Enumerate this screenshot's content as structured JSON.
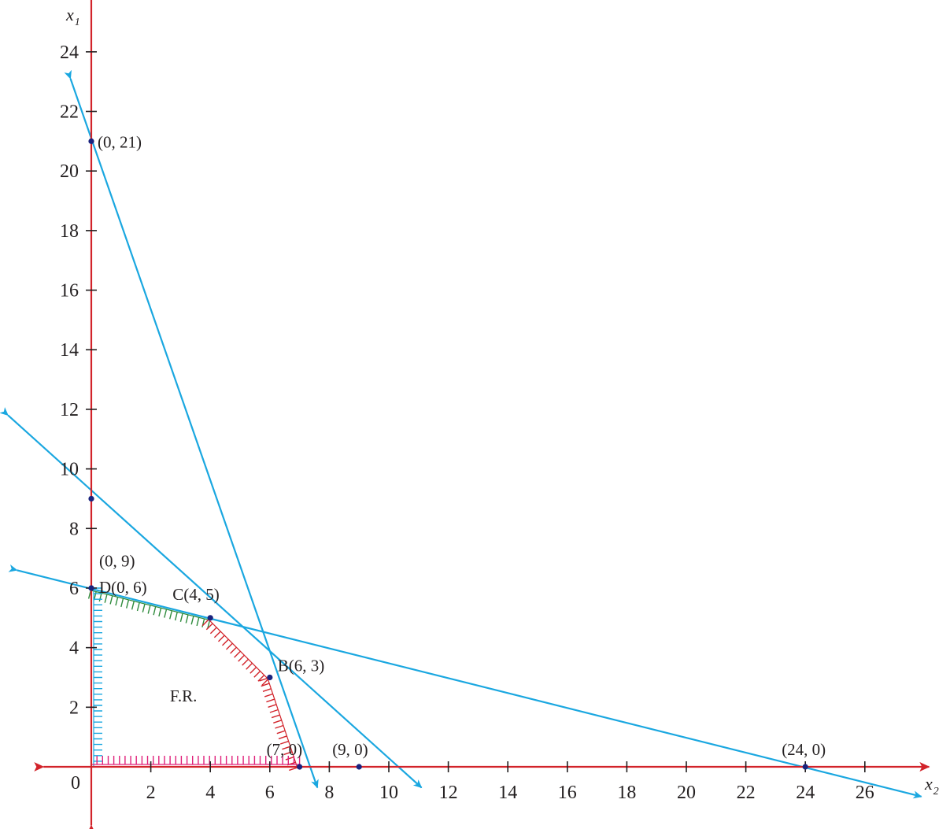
{
  "chart_data": {
    "type": "line",
    "title": "",
    "xlabel": "x",
    "xlabel_sub": "2",
    "ylabel": "x",
    "ylabel_sub": "1",
    "xlim": [
      -1.5,
      28
    ],
    "ylim": [
      -1.7,
      26
    ],
    "origin_label": "0",
    "x_ticks": [
      2,
      4,
      6,
      8,
      10,
      12,
      14,
      16,
      18,
      20,
      22,
      24,
      26
    ],
    "y_ticks": [
      2,
      4,
      6,
      8,
      10,
      12,
      14,
      16,
      18,
      20,
      22,
      24
    ],
    "grid": false,
    "axis_color": "#d2232a",
    "line_color": "#1aa7e0",
    "point_color": "#1a237e",
    "series": [
      {
        "x": [
          -0.7,
          7.6
        ],
        "y": [
          23.1,
          -0.7
        ]
      },
      {
        "x": [
          -2.8,
          11.1
        ],
        "y": [
          11.8,
          -0.7
        ]
      },
      {
        "x": [
          -2.5,
          27.9
        ],
        "y": [
          6.6,
          -1.0
        ]
      }
    ],
    "points": [
      {
        "label": "(0, 21)",
        "x": 0,
        "y": 21
      },
      {
        "label": "(0, 9)",
        "x": 0,
        "y": 9
      },
      {
        "label": "D(0, 6)",
        "x": 0,
        "y": 6
      },
      {
        "label": "C(4, 5)",
        "x": 4,
        "y": 5
      },
      {
        "label": "B(6, 3)",
        "x": 6,
        "y": 3
      },
      {
        "label": "(7, 0)",
        "x": 7,
        "y": 0
      },
      {
        "label": "(9, 0)",
        "x": 9,
        "y": 0
      },
      {
        "label": "(24, 0)",
        "x": 24,
        "y": 0
      }
    ],
    "region": {
      "label": "F.R.",
      "label_x": 3.1,
      "label_y": 2.2,
      "boundary": [
        {
          "from": [
            0,
            6
          ],
          "to": [
            4,
            5
          ],
          "color": "#2e8b3c"
        },
        {
          "from": [
            4,
            5
          ],
          "to": [
            6,
            3
          ],
          "color": "#d2232a"
        },
        {
          "from": [
            6,
            3
          ],
          "to": [
            7,
            0
          ],
          "color": "#d2232a"
        },
        {
          "from": [
            0,
            6
          ],
          "to": [
            0,
            0
          ],
          "color": "#1aa7e0"
        },
        {
          "from": [
            0,
            0
          ],
          "to": [
            7,
            0
          ],
          "color": "#e0207a"
        }
      ]
    }
  }
}
